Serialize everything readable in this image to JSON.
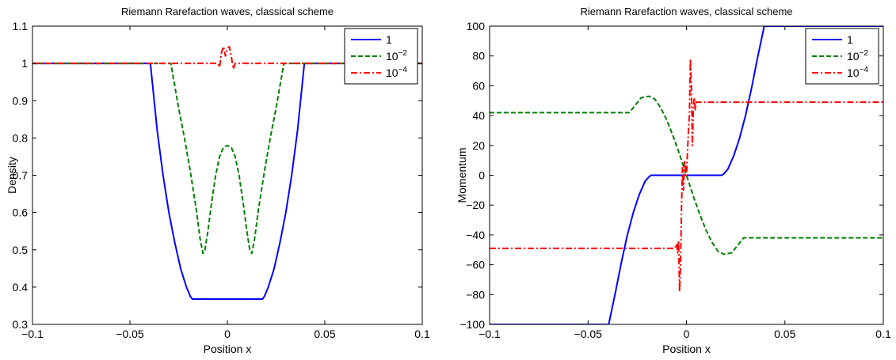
{
  "charts": [
    {
      "chart_data": {
        "type": "line",
        "title": "Riemann Rarefaction waves, classical scheme",
        "xlabel": "Position x",
        "ylabel": "Density",
        "xlim": [
          -0.1,
          0.1
        ],
        "ylim": [
          0.3,
          1.1
        ],
        "xticks": [
          -0.1,
          -0.05,
          0,
          0.05,
          0.1
        ],
        "xtick_labels": [
          "−0.1",
          "−0.05",
          "0",
          "0.05",
          "0.1"
        ],
        "yticks": [
          0.3,
          0.4,
          0.5,
          0.6,
          0.7,
          0.8,
          0.9,
          1.0,
          1.1
        ],
        "ytick_labels": [
          "0.3",
          "0.4",
          "0.5",
          "0.6",
          "0.7",
          "0.8",
          "0.9",
          "1",
          "1.1"
        ],
        "grid": false,
        "legend_position": "top-right",
        "series": [
          {
            "name": "1",
            "color": "#0000ff",
            "dash": "solid",
            "x": [
              -0.1,
              -0.0395,
              -0.036,
              -0.033,
              -0.03,
              -0.027,
              -0.024,
              -0.021,
              -0.019,
              -0.018,
              0.018,
              0.019,
              0.021,
              0.024,
              0.027,
              0.03,
              0.033,
              0.036,
              0.0395,
              0.1
            ],
            "y": [
              1.0,
              1.0,
              0.82,
              0.7,
              0.6,
              0.52,
              0.45,
              0.4,
              0.375,
              0.368,
              0.368,
              0.375,
              0.4,
              0.45,
              0.52,
              0.6,
              0.7,
              0.82,
              1.0,
              1.0
            ]
          },
          {
            "name": "10^-2",
            "color": "#008000",
            "dash": "dashed",
            "x": [
              -0.1,
              -0.029,
              -0.027,
              -0.025,
              -0.022,
              -0.019,
              -0.016,
              -0.014,
              -0.0125,
              -0.0115,
              -0.01,
              -0.008,
              -0.006,
              -0.004,
              -0.002,
              0,
              0.002,
              0.004,
              0.006,
              0.008,
              0.01,
              0.0115,
              0.0125,
              0.014,
              0.016,
              0.019,
              0.022,
              0.025,
              0.027,
              0.029,
              0.1
            ],
            "y": [
              1.0,
              1.0,
              0.94,
              0.88,
              0.8,
              0.71,
              0.61,
              0.53,
              0.49,
              0.5,
              0.55,
              0.63,
              0.7,
              0.75,
              0.775,
              0.78,
              0.775,
              0.75,
              0.7,
              0.63,
              0.55,
              0.5,
              0.49,
              0.53,
              0.61,
              0.71,
              0.8,
              0.88,
              0.94,
              1.0,
              1.0
            ]
          },
          {
            "name": "10^-4",
            "color": "#ff0000",
            "dash": "dashdot",
            "x": [
              -0.1,
              -0.005,
              -0.004,
              -0.003,
              -0.002,
              -0.001,
              0.0,
              0.001,
              0.002,
              0.003,
              0.004,
              0.005,
              0.1
            ],
            "y": [
              1.0,
              1.0,
              0.99,
              1.03,
              1.045,
              1.02,
              1.04,
              1.045,
              1.02,
              0.985,
              1.0,
              1.0,
              1.0
            ]
          }
        ]
      }
    },
    {
      "chart_data": {
        "type": "line",
        "title": "Riemann Rarefaction waves, classical scheme",
        "xlabel": "Position x",
        "ylabel": "Momentum",
        "xlim": [
          -0.1,
          0.1
        ],
        "ylim": [
          -100,
          100
        ],
        "xticks": [
          -0.1,
          -0.05,
          0,
          0.05,
          0.1
        ],
        "xtick_labels": [
          "−0.1",
          "−0.05",
          "0",
          "0.05",
          "0.1"
        ],
        "yticks": [
          -100,
          -80,
          -60,
          -40,
          -20,
          0,
          20,
          40,
          60,
          80,
          100
        ],
        "ytick_labels": [
          "−100",
          "−80",
          "−60",
          "−40",
          "−20",
          "0",
          "20",
          "40",
          "60",
          "80",
          "100"
        ],
        "grid": false,
        "legend_position": "top-right",
        "series": [
          {
            "name": "1",
            "color": "#0000ff",
            "dash": "solid",
            "x": [
              -0.1,
              -0.0395,
              -0.036,
              -0.033,
              -0.03,
              -0.027,
              -0.024,
              -0.021,
              -0.019,
              -0.018,
              0.018,
              0.019,
              0.021,
              0.024,
              0.027,
              0.03,
              0.033,
              0.036,
              0.0395,
              0.1
            ],
            "y": [
              -100,
              -100,
              -78,
              -58,
              -40,
              -25,
              -13,
              -4,
              -1,
              0,
              0,
              1,
              4,
              13,
              25,
              40,
              58,
              78,
              100,
              100
            ]
          },
          {
            "name": "10^-2",
            "color": "#008000",
            "dash": "dashed",
            "x": [
              -0.1,
              -0.029,
              -0.026,
              -0.023,
              -0.019,
              -0.016,
              -0.013,
              -0.01,
              -0.007,
              -0.004,
              -0.002,
              0,
              0.002,
              0.004,
              0.007,
              0.01,
              0.013,
              0.016,
              0.019,
              0.023,
              0.026,
              0.029,
              0.1
            ],
            "y": [
              42,
              42,
              47,
              52,
              53,
              51,
              45,
              37,
              27,
              16,
              8,
              0,
              -8,
              -16,
              -27,
              -37,
              -45,
              -51,
              -53,
              -52,
              -47,
              -42,
              -42
            ],
            "dashes_note": ""
          },
          {
            "name": "10^-4",
            "color": "#ff0000",
            "dash": "dashdot",
            "x": [
              -0.1,
              -0.006,
              -0.005,
              -0.0045,
              -0.004,
              -0.0035,
              -0.003,
              -0.0025,
              -0.002,
              -0.0015,
              -0.001,
              0.0,
              0.001,
              0.0015,
              0.002,
              0.0025,
              0.003,
              0.0035,
              0.004,
              0.0045,
              0.005,
              0.006,
              0.1
            ],
            "y": [
              -49,
              -49,
              -46,
              -52,
              -44,
              -78,
              -60,
              -20,
              5,
              -10,
              10,
              0,
              30,
              40,
              78,
              60,
              20,
              45,
              52,
              44,
              49,
              49,
              49
            ]
          }
        ]
      }
    }
  ]
}
